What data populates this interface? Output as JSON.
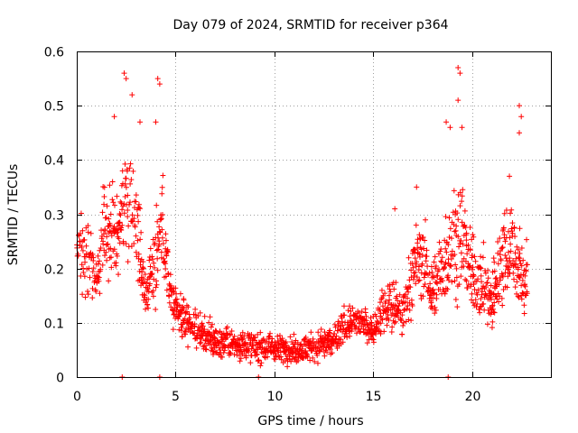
{
  "chart_data": {
    "type": "scatter",
    "title": "Day 079 of 2024, SRMTID for receiver p364",
    "xlabel": "GPS time / hours",
    "ylabel": "SRMTID / TECUs",
    "xlim": [
      0,
      24
    ],
    "ylim": [
      0,
      0.6
    ],
    "x_ticks": [
      "0",
      "5",
      "10",
      "15",
      "20"
    ],
    "y_ticks": [
      "0",
      "0.1",
      "0.2",
      "0.3",
      "0.4",
      "0.5",
      "0.6"
    ],
    "grid": true,
    "marker": "plus",
    "color": "#ff0000",
    "series": [
      {
        "name": "SRMTID",
        "envelope": [
          {
            "x": 0.0,
            "y": 0.25,
            "spread": 0.06
          },
          {
            "x": 0.5,
            "y": 0.23,
            "spread": 0.07
          },
          {
            "x": 1.0,
            "y": 0.18,
            "spread": 0.06
          },
          {
            "x": 1.5,
            "y": 0.27,
            "spread": 0.08
          },
          {
            "x": 2.0,
            "y": 0.26,
            "spread": 0.08
          },
          {
            "x": 2.5,
            "y": 0.33,
            "spread": 0.1
          },
          {
            "x": 3.0,
            "y": 0.3,
            "spread": 0.1
          },
          {
            "x": 3.5,
            "y": 0.15,
            "spread": 0.05
          },
          {
            "x": 4.0,
            "y": 0.23,
            "spread": 0.09
          },
          {
            "x": 4.3,
            "y": 0.3,
            "spread": 0.09
          },
          {
            "x": 4.7,
            "y": 0.16,
            "spread": 0.05
          },
          {
            "x": 5.0,
            "y": 0.12,
            "spread": 0.04
          },
          {
            "x": 6.0,
            "y": 0.09,
            "spread": 0.035
          },
          {
            "x": 7.0,
            "y": 0.065,
            "spread": 0.03
          },
          {
            "x": 8.0,
            "y": 0.06,
            "spread": 0.025
          },
          {
            "x": 9.0,
            "y": 0.055,
            "spread": 0.025
          },
          {
            "x": 10.0,
            "y": 0.055,
            "spread": 0.025
          },
          {
            "x": 11.0,
            "y": 0.05,
            "spread": 0.02
          },
          {
            "x": 12.0,
            "y": 0.055,
            "spread": 0.025
          },
          {
            "x": 13.0,
            "y": 0.065,
            "spread": 0.03
          },
          {
            "x": 13.7,
            "y": 0.1,
            "spread": 0.03
          },
          {
            "x": 14.5,
            "y": 0.1,
            "spread": 0.025
          },
          {
            "x": 15.0,
            "y": 0.085,
            "spread": 0.025
          },
          {
            "x": 15.5,
            "y": 0.12,
            "spread": 0.04
          },
          {
            "x": 16.0,
            "y": 0.13,
            "spread": 0.05
          },
          {
            "x": 16.5,
            "y": 0.11,
            "spread": 0.04
          },
          {
            "x": 17.0,
            "y": 0.2,
            "spread": 0.07
          },
          {
            "x": 17.5,
            "y": 0.22,
            "spread": 0.07
          },
          {
            "x": 18.0,
            "y": 0.16,
            "spread": 0.05
          },
          {
            "x": 18.5,
            "y": 0.2,
            "spread": 0.07
          },
          {
            "x": 19.0,
            "y": 0.25,
            "spread": 0.09
          },
          {
            "x": 19.5,
            "y": 0.26,
            "spread": 0.1
          },
          {
            "x": 20.0,
            "y": 0.19,
            "spread": 0.07
          },
          {
            "x": 20.5,
            "y": 0.17,
            "spread": 0.06
          },
          {
            "x": 21.0,
            "y": 0.14,
            "spread": 0.06
          },
          {
            "x": 21.5,
            "y": 0.22,
            "spread": 0.08
          },
          {
            "x": 22.0,
            "y": 0.25,
            "spread": 0.08
          },
          {
            "x": 22.5,
            "y": 0.18,
            "spread": 0.08
          },
          {
            "x": 22.8,
            "y": 0.18,
            "spread": 0.06
          }
        ],
        "peaks": [
          {
            "x": 2.4,
            "y": 0.56
          },
          {
            "x": 2.5,
            "y": 0.55
          },
          {
            "x": 2.8,
            "y": 0.52
          },
          {
            "x": 3.2,
            "y": 0.47
          },
          {
            "x": 1.9,
            "y": 0.48
          },
          {
            "x": 4.1,
            "y": 0.55
          },
          {
            "x": 4.2,
            "y": 0.54
          },
          {
            "x": 4.0,
            "y": 0.47
          },
          {
            "x": 18.7,
            "y": 0.47
          },
          {
            "x": 18.9,
            "y": 0.46
          },
          {
            "x": 19.3,
            "y": 0.57
          },
          {
            "x": 19.4,
            "y": 0.56
          },
          {
            "x": 19.3,
            "y": 0.51
          },
          {
            "x": 19.5,
            "y": 0.46
          },
          {
            "x": 22.4,
            "y": 0.5
          },
          {
            "x": 22.5,
            "y": 0.48
          },
          {
            "x": 22.4,
            "y": 0.45
          },
          {
            "x": 21.9,
            "y": 0.37
          },
          {
            "x": 17.2,
            "y": 0.35
          },
          {
            "x": 16.1,
            "y": 0.31
          }
        ],
        "zero_points": [
          {
            "x": 2.3,
            "y": 0.0
          },
          {
            "x": 4.2,
            "y": 0.0
          },
          {
            "x": 9.2,
            "y": 0.0
          },
          {
            "x": 18.8,
            "y": 0.0
          }
        ],
        "sampling_interval_hours": 0.02
      }
    ]
  }
}
